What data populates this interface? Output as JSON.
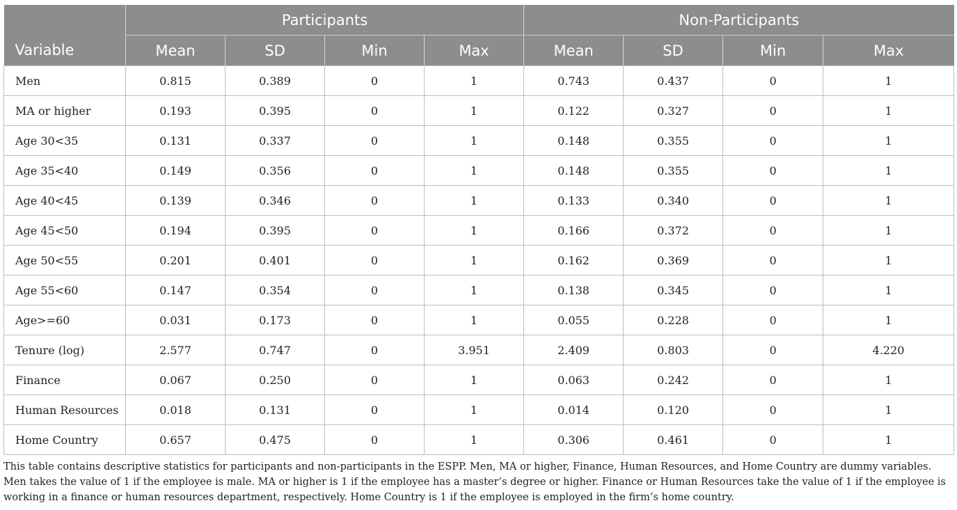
{
  "table": {
    "groups": [
      "Participants",
      "Non-Participants"
    ],
    "columns": [
      "Variable",
      "Mean",
      "SD",
      "Min",
      "Max",
      "Mean",
      "SD",
      "Min",
      "Max"
    ],
    "rows": [
      [
        "Men",
        "0.815",
        "0.389",
        "0",
        "1",
        "0.743",
        "0.437",
        "0",
        "1"
      ],
      [
        "MA or higher",
        "0.193",
        "0.395",
        "0",
        "1",
        "0.122",
        "0.327",
        "0",
        "1"
      ],
      [
        "Age 30<35",
        "0.131",
        "0.337",
        "0",
        "1",
        "0.148",
        "0.355",
        "0",
        "1"
      ],
      [
        "Age 35<40",
        "0.149",
        "0.356",
        "0",
        "1",
        "0.148",
        "0.355",
        "0",
        "1"
      ],
      [
        "Age 40<45",
        "0.139",
        "0.346",
        "0",
        "1",
        "0.133",
        "0.340",
        "0",
        "1"
      ],
      [
        "Age 45<50",
        "0.194",
        "0.395",
        "0",
        "1",
        "0.166",
        "0.372",
        "0",
        "1"
      ],
      [
        "Age 50<55",
        "0.201",
        "0.401",
        "0",
        "1",
        "0.162",
        "0.369",
        "0",
        "1"
      ],
      [
        "Age 55<60",
        "0.147",
        "0.354",
        "0",
        "1",
        "0.138",
        "0.345",
        "0",
        "1"
      ],
      [
        "Age>=60",
        "0.031",
        "0.173",
        "0",
        "1",
        "0.055",
        "0.228",
        "0",
        "1"
      ],
      [
        "Tenure (log)",
        "2.577",
        "0.747",
        "0",
        "3.951",
        "2.409",
        "0.803",
        "0",
        "4.220"
      ],
      [
        "Finance",
        "0.067",
        "0.250",
        "0",
        "1",
        "0.063",
        "0.242",
        "0",
        "1"
      ],
      [
        "Human Resources",
        "0.018",
        "0.131",
        "0",
        "1",
        "0.014",
        "0.120",
        "0",
        "1"
      ],
      [
        "Home Country",
        "0.657",
        "0.475",
        "0",
        "1",
        "0.306",
        "0.461",
        "0",
        "1"
      ]
    ]
  },
  "note": "This table contains descriptive statistics for participants and non-participants in the ESPP. Men, MA or higher, Finance, Human Resources, and Home Country are dummy variables. Men takes the value of 1 if the employee is male. MA or higher is 1 if the employee has a master’s degree or higher. Finance or Human Resources take the value of 1 if the employee is working in a finance or human resources department, respectively. Home Country is 1 if the employee is employed in the firm’s home country.",
  "colors": {
    "header_bg": "#8c8d8e",
    "header_text": "#ffffff",
    "grid": "#bdbdbd"
  }
}
